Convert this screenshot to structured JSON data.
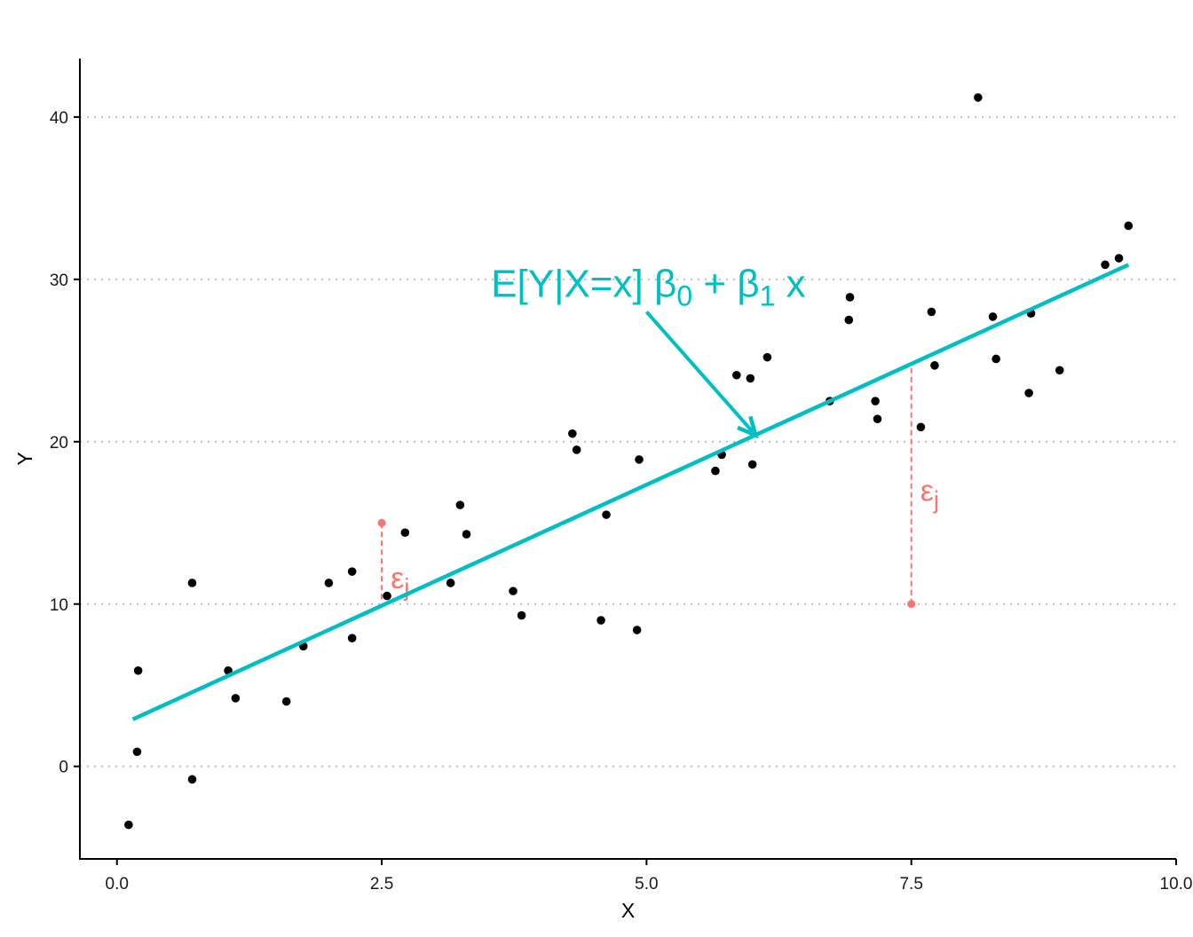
{
  "chart_data": {
    "type": "scatter",
    "xlabel": "X",
    "ylabel": "Y",
    "xlim": [
      -0.35,
      10.0
    ],
    "ylim": [
      -5.7,
      43.6
    ],
    "x_ticks": [
      0.0,
      2.5,
      5.0,
      7.5,
      10.0
    ],
    "x_tick_labels": [
      "0.0",
      "2.5",
      "5.0",
      "7.5",
      "10.0"
    ],
    "y_ticks": [
      0,
      10,
      20,
      30,
      40
    ],
    "y_tick_labels": [
      "0",
      "10",
      "20",
      "30",
      "40"
    ],
    "grid": "horizontal dotted major lines",
    "points": [
      {
        "x": 0.11,
        "y": -3.6
      },
      {
        "x": 0.19,
        "y": 0.9
      },
      {
        "x": 0.2,
        "y": 5.9
      },
      {
        "x": 0.71,
        "y": -0.8
      },
      {
        "x": 0.71,
        "y": 11.3
      },
      {
        "x": 1.05,
        "y": 5.9
      },
      {
        "x": 1.12,
        "y": 4.2
      },
      {
        "x": 1.6,
        "y": 4.0
      },
      {
        "x": 1.76,
        "y": 7.4
      },
      {
        "x": 2.0,
        "y": 11.3
      },
      {
        "x": 2.22,
        "y": 7.9
      },
      {
        "x": 2.22,
        "y": 12.0
      },
      {
        "x": 2.55,
        "y": 10.5
      },
      {
        "x": 2.72,
        "y": 14.4
      },
      {
        "x": 3.15,
        "y": 11.3
      },
      {
        "x": 3.24,
        "y": 16.1
      },
      {
        "x": 3.3,
        "y": 14.3
      },
      {
        "x": 3.74,
        "y": 10.8
      },
      {
        "x": 3.82,
        "y": 9.3
      },
      {
        "x": 4.3,
        "y": 20.5
      },
      {
        "x": 4.34,
        "y": 19.5
      },
      {
        "x": 4.57,
        "y": 9.0
      },
      {
        "x": 4.62,
        "y": 15.5
      },
      {
        "x": 4.91,
        "y": 8.4
      },
      {
        "x": 4.93,
        "y": 18.9
      },
      {
        "x": 5.65,
        "y": 18.2
      },
      {
        "x": 5.71,
        "y": 19.2
      },
      {
        "x": 5.85,
        "y": 24.1
      },
      {
        "x": 5.98,
        "y": 23.9
      },
      {
        "x": 6.0,
        "y": 18.6
      },
      {
        "x": 6.14,
        "y": 25.2
      },
      {
        "x": 6.73,
        "y": 22.5
      },
      {
        "x": 6.91,
        "y": 27.5
      },
      {
        "x": 6.92,
        "y": 28.9
      },
      {
        "x": 7.16,
        "y": 22.5
      },
      {
        "x": 7.18,
        "y": 21.4
      },
      {
        "x": 7.59,
        "y": 20.9
      },
      {
        "x": 7.69,
        "y": 28.0
      },
      {
        "x": 7.72,
        "y": 24.7
      },
      {
        "x": 8.13,
        "y": 41.2
      },
      {
        "x": 8.27,
        "y": 27.7
      },
      {
        "x": 8.3,
        "y": 25.1
      },
      {
        "x": 8.61,
        "y": 23.0
      },
      {
        "x": 8.63,
        "y": 27.9
      },
      {
        "x": 8.9,
        "y": 24.4
      },
      {
        "x": 9.33,
        "y": 30.9
      },
      {
        "x": 9.46,
        "y": 31.3
      },
      {
        "x": 9.55,
        "y": 33.3
      }
    ],
    "regression_line": {
      "x": [
        0.15,
        9.55
      ],
      "y": [
        2.9,
        30.9
      ],
      "color": "#00BFC4"
    },
    "annotation": {
      "text_main": "E[Y|X=x] β",
      "sub0": "0",
      "text_mid": " + β",
      "sub1": "1",
      "text_end": " x",
      "color": "#00BFC4",
      "arrow_from": {
        "x": 5.0,
        "y": 28.0
      },
      "arrow_to": {
        "x": 6.03,
        "y": 20.4
      }
    },
    "residuals": [
      {
        "x": 2.5,
        "y_point": 15.0,
        "y_fit": 10.2,
        "label": "ε",
        "label_sub": "j",
        "color": "#F8766D"
      },
      {
        "x": 7.5,
        "y_point": 10.0,
        "y_fit": 24.7,
        "label": "ε",
        "label_sub": "j",
        "color": "#F8766D"
      }
    ],
    "colors": {
      "points": "#000000",
      "axis": "#000000",
      "grid": "#BEBEBE"
    }
  }
}
